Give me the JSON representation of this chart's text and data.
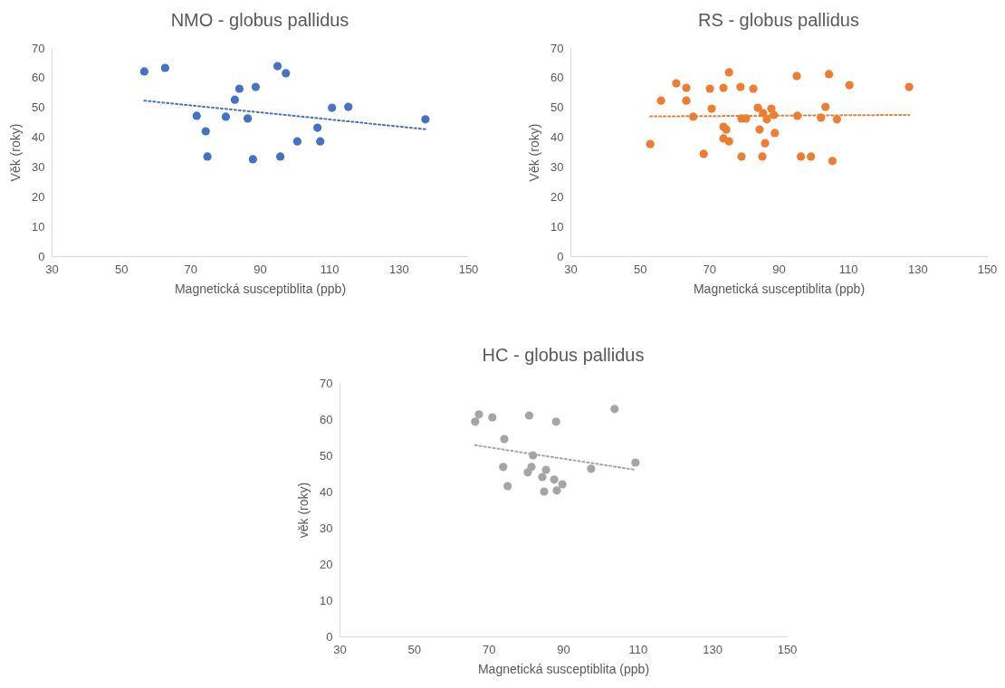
{
  "chart_data": [
    {
      "type": "scatter",
      "title": "NMO - globus pallidus",
      "xlabel": "Magnetická susceptiblita (ppb)",
      "ylabel": "Věk (roky)",
      "xlim": [
        30,
        150
      ],
      "xticks": [
        30,
        50,
        70,
        90,
        110,
        130,
        150
      ],
      "ylim": [
        0,
        70
      ],
      "yticks": [
        0,
        10,
        20,
        30,
        40,
        50,
        60,
        70
      ],
      "series": [
        {
          "marker": "circle",
          "color": "#4472c4",
          "x": [
            56.7,
            62.7,
            71.8,
            74.4,
            74.9,
            80.2,
            82.8,
            84.1,
            86.5,
            88.8,
            88.0,
            95.1,
            97.5,
            95.9,
            100.8,
            106.6,
            107.4,
            110.8,
            115.5,
            137.7
          ],
          "values": [
            62.1,
            63.3,
            47.2,
            42.0,
            33.5,
            46.9,
            52.6,
            56.3,
            46.3,
            56.9,
            32.6,
            63.9,
            61.5,
            33.5,
            38.6,
            43.2,
            38.6,
            49.9,
            50.2,
            46.0
          ]
        },
        {
          "type": "line",
          "line_style": "dotted",
          "color": "#4472c4",
          "x": [
            56.7,
            137.7
          ],
          "values": [
            52.3,
            42.7
          ]
        }
      ]
    },
    {
      "type": "scatter",
      "title": "RS - globus pallidus",
      "xlabel": "Magnetická susceptiblita (ppb)",
      "ylabel": "Věk (roky)",
      "xlim": [
        30,
        150
      ],
      "xticks": [
        30,
        50,
        70,
        90,
        110,
        130,
        150
      ],
      "ylim": [
        0,
        70
      ],
      "yticks": [
        0,
        10,
        20,
        30,
        40,
        50,
        60,
        70
      ],
      "series": [
        {
          "marker": "circle",
          "color": "#ed7d31",
          "x": [
            53.0,
            56.1,
            60.5,
            63.4,
            63.4,
            65.4,
            68.4,
            70.2,
            70.7,
            74.1,
            74.1,
            74.9,
            74.1,
            75.7,
            75.7,
            79.0,
            79.3,
            80.6,
            79.3,
            82.7,
            84.0,
            84.5,
            85.3,
            85.5,
            86.1,
            86.6,
            87.9,
            88.6,
            88.9,
            95.2,
            95.4,
            96.4,
            99.3,
            102.2,
            103.5,
            104.5,
            105.5,
            106.8,
            110.4,
            127.6
          ],
          "values": [
            37.7,
            52.3,
            58.1,
            56.6,
            52.3,
            46.9,
            34.4,
            56.3,
            49.6,
            56.6,
            43.5,
            42.6,
            39.6,
            61.8,
            38.6,
            56.9,
            46.3,
            46.3,
            33.5,
            56.3,
            49.9,
            42.6,
            33.5,
            48.1,
            38.0,
            46.0,
            49.6,
            47.5,
            41.4,
            60.6,
            47.2,
            33.5,
            33.5,
            46.6,
            50.2,
            61.2,
            32.0,
            46.0,
            57.5,
            56.9
          ]
        },
        {
          "type": "line",
          "line_style": "dotted",
          "color": "#ed7d31",
          "x": [
            53.0,
            127.6
          ],
          "values": [
            47.0,
            47.5
          ]
        }
      ]
    },
    {
      "type": "scatter",
      "title": "HC - globus pallidus",
      "xlabel": "Magnetická susceptiblita (ppb)",
      "ylabel": "věk (roky)",
      "xlim": [
        30,
        150
      ],
      "xticks": [
        30,
        50,
        70,
        90,
        110,
        130,
        150
      ],
      "ylim": [
        0,
        70
      ],
      "yticks": [
        0,
        10,
        20,
        30,
        40,
        50,
        60,
        70
      ],
      "series": [
        {
          "marker": "circle",
          "color": "#a5a5a5",
          "x": [
            66.4,
            67.4,
            71.0,
            74.2,
            73.9,
            75.1,
            80.9,
            81.9,
            81.5,
            80.5,
            84.4,
            85.4,
            84.9,
            87.6,
            88.1,
            88.3,
            89.8,
            97.5,
            103.8,
            109.4
          ],
          "values": [
            59.3,
            61.3,
            60.5,
            54.5,
            46.8,
            41.5,
            61.0,
            50.0,
            46.8,
            45.3,
            44.0,
            46.0,
            40.0,
            43.3,
            59.3,
            40.3,
            42.0,
            46.3,
            62.8,
            48.0
          ]
        },
        {
          "type": "line",
          "line_style": "dotted",
          "color": "#a5a5a5",
          "x": [
            66.4,
            109.4
          ],
          "values": [
            52.8,
            46.0
          ]
        }
      ]
    }
  ]
}
